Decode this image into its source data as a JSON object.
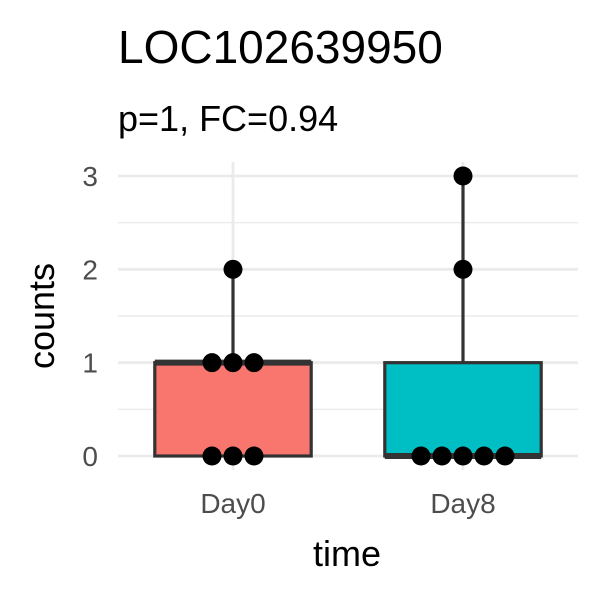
{
  "chart_data": {
    "type": "boxplot",
    "title": "LOC102639950",
    "subtitle": "p=1, FC=0.94",
    "xlabel": "time",
    "ylabel": "counts",
    "categories": [
      "Day0",
      "Day8"
    ],
    "ylim": [
      -0.15,
      3.15
    ],
    "yticks": [
      0,
      1,
      2,
      3
    ],
    "grid": true,
    "legend": "none",
    "boxes": [
      {
        "category": "Day0",
        "min": 0,
        "q1": 0,
        "median": 1,
        "q3": 1,
        "max": 2,
        "fill": "#F8766D"
      },
      {
        "category": "Day8",
        "min": 0,
        "q1": 0,
        "median": 0,
        "q3": 1,
        "max": 3,
        "fill": "#00BFC4"
      }
    ],
    "points": [
      {
        "category": "Day0",
        "values": [
          0,
          0,
          0,
          1,
          1,
          1,
          2
        ]
      },
      {
        "category": "Day8",
        "values": [
          0,
          0,
          0,
          0,
          0,
          2,
          3
        ]
      }
    ]
  },
  "colors": {
    "grid": "#ebebeb",
    "box_outline": "#333333",
    "point": "#000000"
  }
}
